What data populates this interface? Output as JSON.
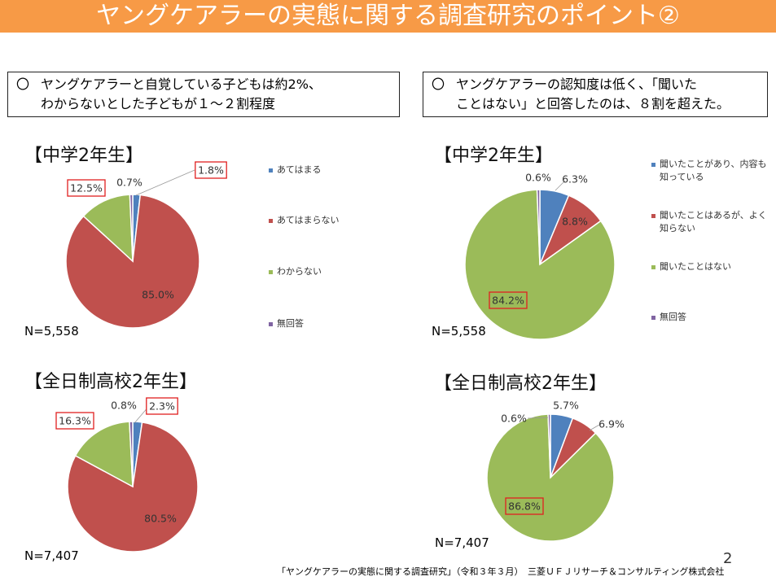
{
  "title": "ヤングケアラーの実態に関する調査研究のポイント②",
  "callouts": [
    {
      "circle": "〇",
      "line1": "ヤングケアラーと自覚している子どもは約2%、",
      "line2": "わからないとした子どもが１～２割程度"
    },
    {
      "circle": "〇",
      "line1": "ヤングケアラーの認知度は低く、「聞いた",
      "line2": "ことはない」と回答したのは、８割を超えた。"
    }
  ],
  "colors": {
    "blue": "#4f81bd",
    "red": "#c0504d",
    "green": "#9bbb59",
    "purple": "#8064a2",
    "banner": "#f79a46",
    "highlight": "#e02020"
  },
  "legends": [
    [
      "あてはまる",
      "あてはまらない",
      "わからない",
      "無回答"
    ],
    [
      [
        "聞いたことがあり、内容も",
        "知っている"
      ],
      [
        "聞いたことはあるが、よく",
        "知らない"
      ],
      [
        "聞いたことはない"
      ],
      [
        "無回答"
      ]
    ]
  ],
  "chart_data": [
    {
      "type": "pie",
      "title": "【中学2年生】",
      "n_label": "N=5,558",
      "slices": [
        {
          "label": "あてはまる",
          "value": 1.8
        },
        {
          "label": "あてはまらない",
          "value": 85.0
        },
        {
          "label": "わからない",
          "value": 12.5
        },
        {
          "label": "無回答",
          "value": 0.7
        }
      ],
      "value_labels": [
        "1.8%",
        "85.0%",
        "12.5%",
        "0.7%"
      ],
      "highlighted": [
        0,
        2
      ]
    },
    {
      "type": "pie",
      "title": "【全日制高校2年生】",
      "n_label": "N=7,407",
      "slices": [
        {
          "label": "あてはまる",
          "value": 2.3
        },
        {
          "label": "あてはまらない",
          "value": 80.5
        },
        {
          "label": "わからない",
          "value": 16.3
        },
        {
          "label": "無回答",
          "value": 0.8
        }
      ],
      "value_labels": [
        "2.3%",
        "80.5%",
        "16.3%",
        "0.8%"
      ],
      "highlighted": [
        0,
        2
      ]
    },
    {
      "type": "pie",
      "title": "【中学2年生】",
      "n_label": "N=5,558",
      "slices": [
        {
          "label": "聞いたことがあり、内容も知っている",
          "value": 6.3
        },
        {
          "label": "聞いたことはあるが、よく知らない",
          "value": 8.8
        },
        {
          "label": "聞いたことはない",
          "value": 84.2
        },
        {
          "label": "無回答",
          "value": 0.6
        }
      ],
      "value_labels": [
        "6.3%",
        "8.8%",
        "84.2%",
        "0.6%"
      ],
      "highlighted": [
        2
      ]
    },
    {
      "type": "pie",
      "title": "【全日制高校2年生】",
      "n_label": "N=7,407",
      "slices": [
        {
          "label": "聞いたことがあり、内容も知っている",
          "value": 5.7
        },
        {
          "label": "聞いたことはあるが、よく知らない",
          "value": 6.9
        },
        {
          "label": "聞いたことはない",
          "value": 86.8
        },
        {
          "label": "無回答",
          "value": 0.6
        }
      ],
      "value_labels": [
        "5.7%",
        "6.9%",
        "86.8%",
        "0.6%"
      ],
      "highlighted": [
        2
      ]
    }
  ],
  "footer": "「ヤングケアラーの実態に関する調査研究」（令和３年３月）　三菱ＵＦＪリサーチ＆コンサルティング株式会社",
  "page_number": "2"
}
